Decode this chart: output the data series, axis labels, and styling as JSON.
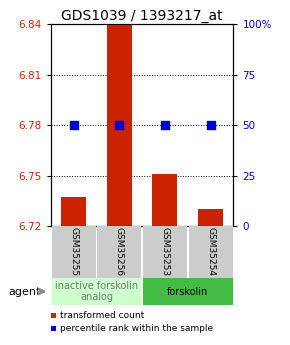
{
  "title": "GDS1039 / 1393217_at",
  "samples": [
    "GSM35255",
    "GSM35256",
    "GSM35253",
    "GSM35254"
  ],
  "bar_values": [
    6.737,
    6.857,
    6.751,
    6.73
  ],
  "bar_base": 6.72,
  "percentile_values": [
    50,
    50,
    50,
    50
  ],
  "ylim_left": [
    6.72,
    6.84
  ],
  "ylim_right": [
    0,
    100
  ],
  "yticks_left": [
    6.72,
    6.75,
    6.78,
    6.81,
    6.84
  ],
  "yticks_right": [
    0,
    25,
    50,
    75,
    100
  ],
  "ytick_labels_left": [
    "6.72",
    "6.75",
    "6.78",
    "6.81",
    "6.84"
  ],
  "ytick_labels_right": [
    "0",
    "25",
    "50",
    "75",
    "100%"
  ],
  "bar_color": "#CC2200",
  "percentile_color": "#0000CC",
  "grid_color": "#000000",
  "bar_width": 0.55,
  "percentile_marker_size": 28,
  "groups": [
    {
      "label": "inactive forskolin\nanalog",
      "samples": [
        0,
        1
      ],
      "color": "#CCFFCC",
      "text_color": "#777777"
    },
    {
      "label": "forskolin",
      "samples": [
        2,
        3
      ],
      "color": "#44BB44",
      "text_color": "#000000"
    }
  ],
  "agent_label": "agent",
  "legend_items": [
    {
      "color": "#CC2200",
      "label": "transformed count"
    },
    {
      "color": "#0000CC",
      "label": "percentile rank within the sample"
    }
  ],
  "sample_box_color": "#CCCCCC",
  "title_fontsize": 10,
  "tick_fontsize": 7.5,
  "sample_fontsize": 6.5,
  "group_fontsize": 7,
  "legend_fontsize": 6.5,
  "agent_fontsize": 8
}
